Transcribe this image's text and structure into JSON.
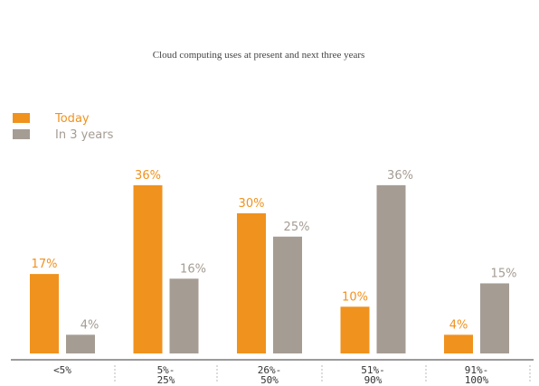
{
  "chart_data": {
    "type": "bar",
    "title": "Cloud computing uses at present and next three years",
    "categories": [
      [
        "<5%"
      ],
      [
        "5%-",
        "25%"
      ],
      [
        "26%-",
        "50%"
      ],
      [
        "51%-",
        "90%"
      ],
      [
        "91%-",
        "100%"
      ]
    ],
    "series": [
      {
        "name": "Today",
        "color": "#f0921e",
        "values": [
          17,
          36,
          30,
          10,
          4
        ]
      },
      {
        "name": "In 3 years",
        "color": "#a59c94",
        "values": [
          4,
          16,
          25,
          36,
          15
        ]
      }
    ],
    "value_suffix": "%",
    "ylim": [
      0,
      40
    ],
    "grid": false,
    "legend": "top-left"
  }
}
